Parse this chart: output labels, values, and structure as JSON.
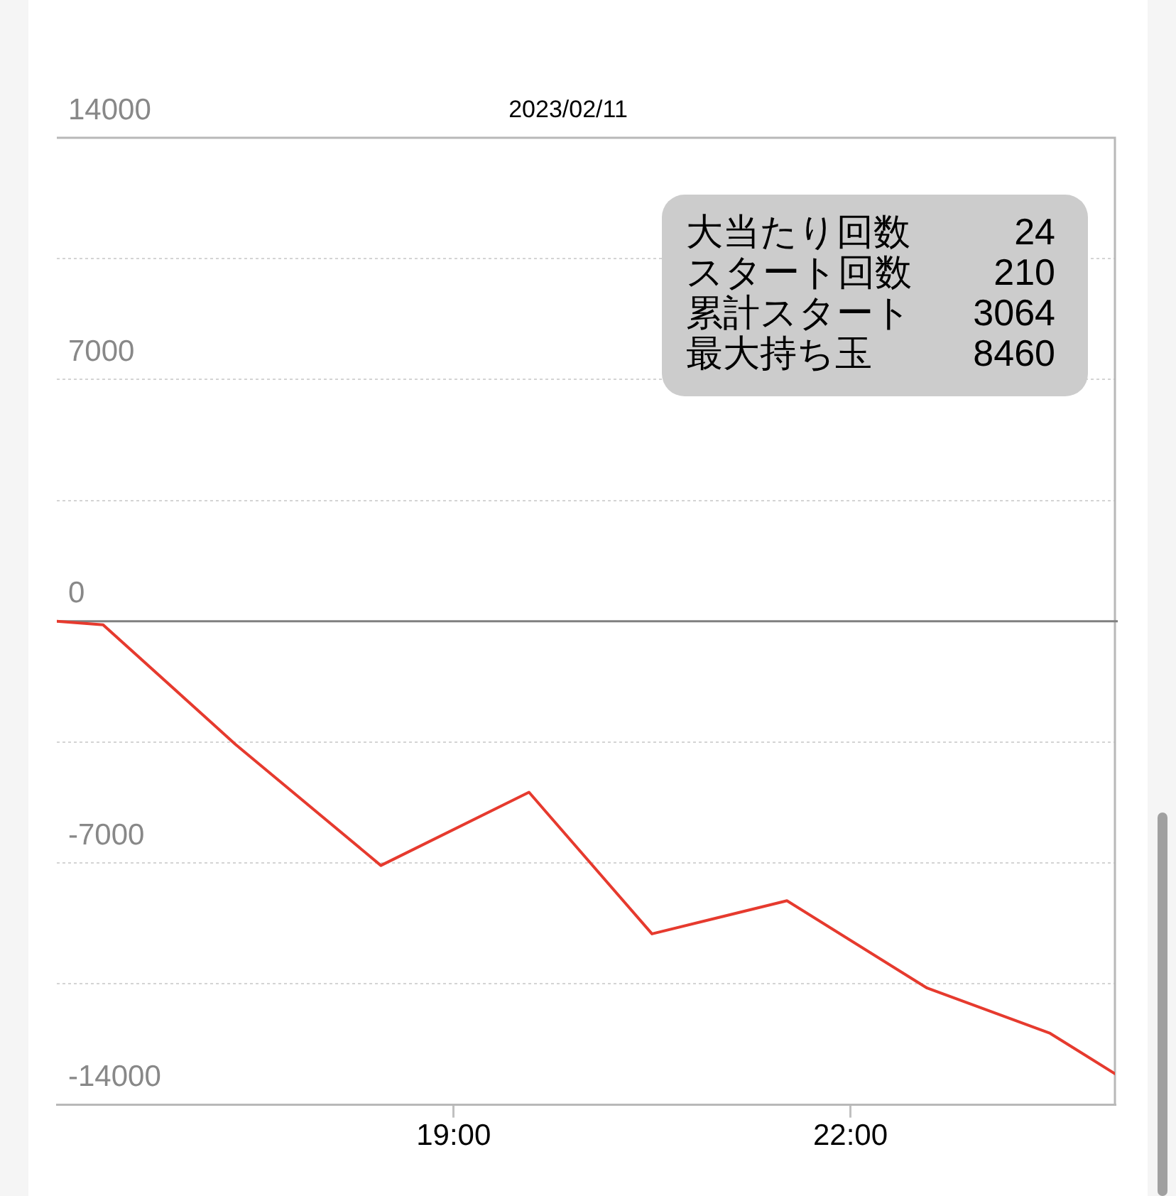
{
  "chart_data": {
    "type": "line",
    "title": "2023/02/11",
    "x": [
      16.0,
      16.35,
      17.35,
      18.45,
      19.57,
      20.5,
      21.52,
      22.58,
      23.51,
      24.0
    ],
    "values": [
      0,
      -100,
      -3560,
      -7070,
      -4950,
      -9050,
      -8090,
      -10620,
      -11930,
      -13100
    ],
    "color": "#e63a2e",
    "xlim": [
      16,
      24
    ],
    "xticks": [
      {
        "value": 19,
        "label": "19:00"
      },
      {
        "value": 22,
        "label": "22:00"
      }
    ],
    "ylim": [
      -14000,
      14000
    ],
    "yticks": [
      -14000,
      {
        "value": -10500,
        "label": null
      },
      -7000,
      {
        "value": -3500,
        "label": null
      },
      0,
      {
        "value": 3500,
        "label": null
      },
      7000,
      {
        "value": 10500,
        "label": null
      },
      14000
    ],
    "grid": "y",
    "marker": "none",
    "line_style": "solid",
    "legend": false,
    "ref_lines": [
      {
        "axis": "y",
        "value": 0,
        "color": "#808080"
      }
    ],
    "annotations": [
      "大当たり回数 24",
      "スタート回数 210",
      "累計スタート 3064",
      "最大持ち玉 8460"
    ]
  }
}
